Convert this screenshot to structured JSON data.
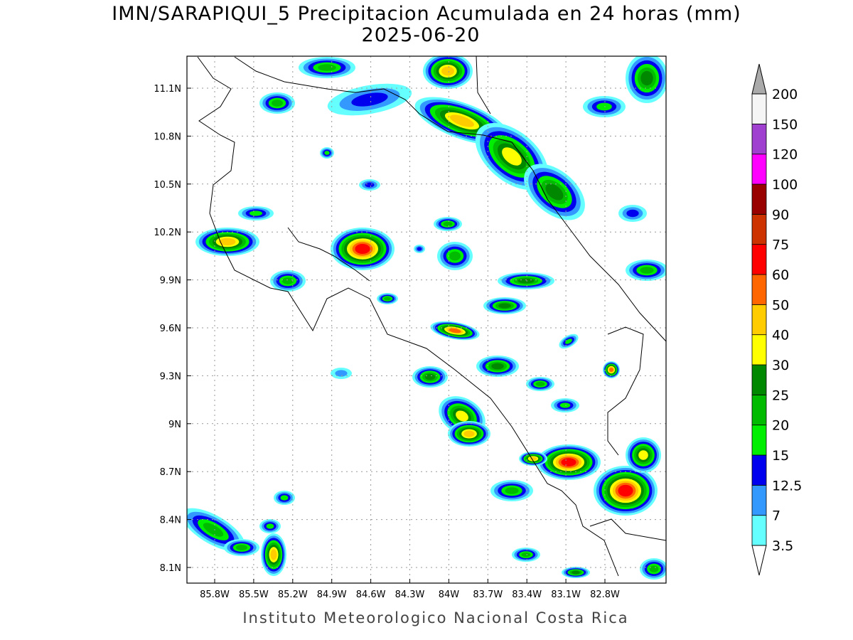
{
  "header": {
    "title": "IMN/SARAPIQUI_5 Precipitacion Acumulada en 24 horas (mm)",
    "date": "2025-06-20"
  },
  "map": {
    "xticks": [
      "85.8W",
      "85.5W",
      "85.2W",
      "84.9W",
      "84.6W",
      "84.3W",
      "84W",
      "83.7W",
      "83.4W",
      "83.1W",
      "82.8W"
    ],
    "yticks": [
      "11.1N",
      "10.8N",
      "10.5N",
      "10.2N",
      "9.9N",
      "9.6N",
      "9.3N",
      "9N",
      "8.7N",
      "8.4N",
      "8.1N"
    ]
  },
  "colorbar": {
    "levels": [
      3.5,
      7,
      12.5,
      15,
      20,
      25,
      30,
      40,
      50,
      60,
      75,
      90,
      100,
      120,
      150,
      200
    ],
    "colors": [
      "#66ffff",
      "#3399ff",
      "#0000ee",
      "#00ee00",
      "#00bb00",
      "#008800",
      "#ffff00",
      "#ffcc00",
      "#ff6600",
      "#ff0000",
      "#cc3300",
      "#990000",
      "#ff00ff",
      "#a040d0",
      "#f5f5f5"
    ],
    "above_color": "#aaaaaa",
    "below_color": "#ffffff"
  },
  "footer": "Instituto Meteorologico Nacional Costa Rica"
}
